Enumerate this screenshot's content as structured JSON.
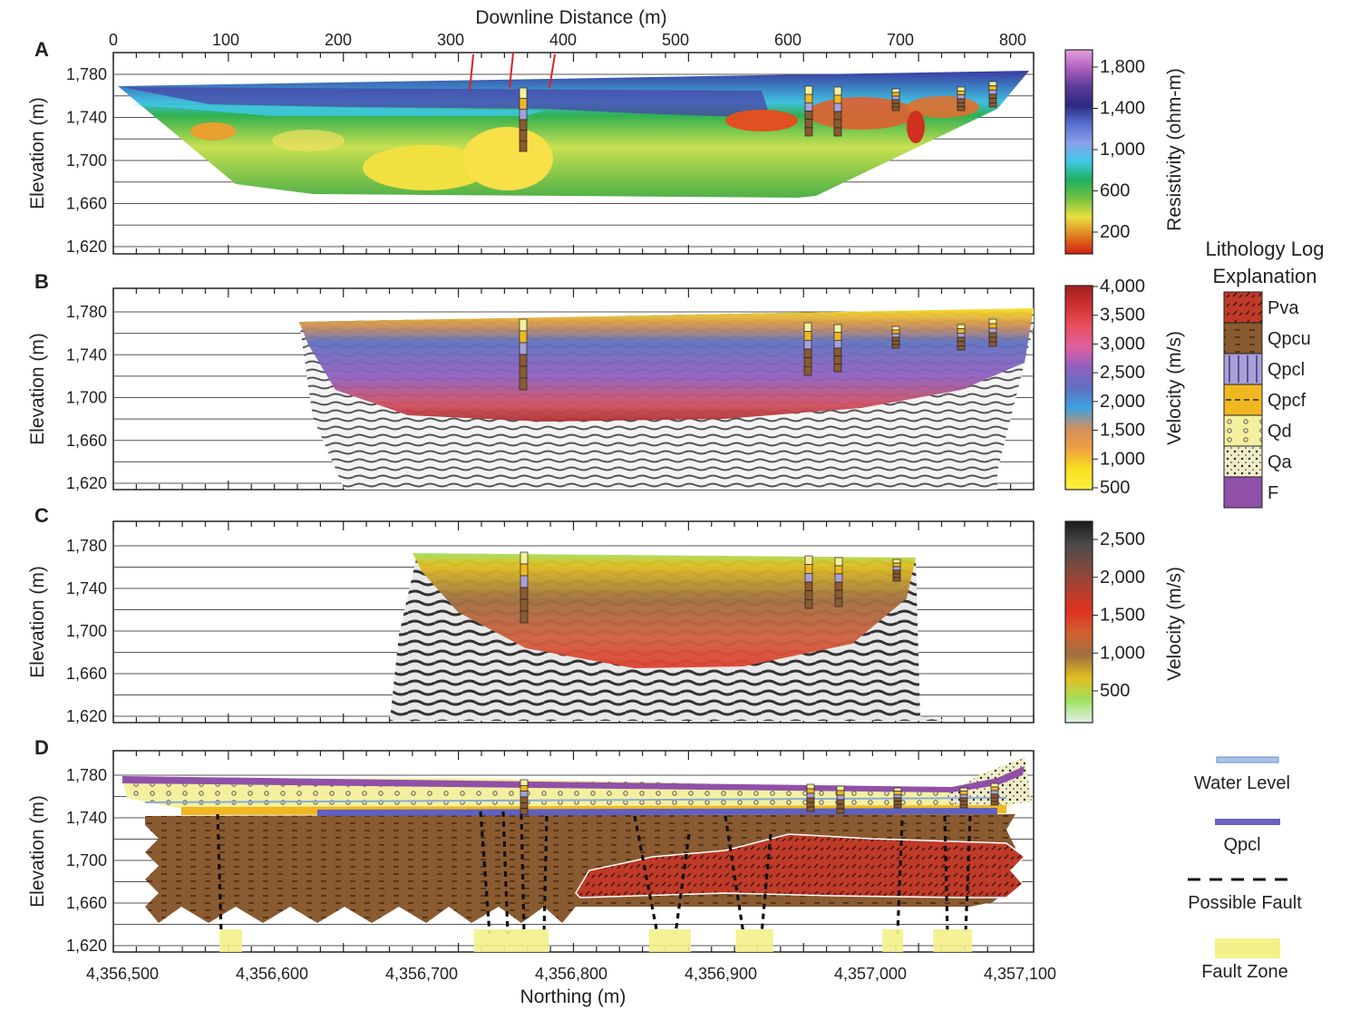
{
  "figure": {
    "top_axis_title": "Downline Distance (m)",
    "top_ticks": [
      "0",
      "100",
      "200",
      "300",
      "400",
      "500",
      "600",
      "700",
      "800"
    ],
    "bottom_axis_title": "Northing (m)",
    "bottom_ticks": [
      "4,356,500",
      "4,356,600",
      "4,356,700",
      "4,356,800",
      "4,356,900",
      "4,357,000",
      "4,357,100"
    ],
    "y_title": "Elevation (m)",
    "y_ticks": [
      "1,780",
      "1,740",
      "1,700",
      "1,660",
      "1,620"
    ]
  },
  "panels": [
    {
      "letter": "A"
    },
    {
      "letter": "B"
    },
    {
      "letter": "C"
    },
    {
      "letter": "D"
    }
  ],
  "colorbars": [
    {
      "title": "Resistivity (ohm-m)",
      "labels": [
        "1,800",
        "1,400",
        "1,000",
        "600",
        "200"
      ],
      "colors": [
        "#e4a0e0",
        "#b05ec0",
        "#5a3a98",
        "#2a2a80",
        "#5a6ed0",
        "#8aa0e8",
        "#40c8e8",
        "#20b060",
        "#70c040",
        "#e8e040",
        "#e08020",
        "#d02010"
      ]
    },
    {
      "title": "Velocity (m/s)",
      "labels": [
        "4,000",
        "3,500",
        "3,000",
        "2,500",
        "2,000",
        "1,500",
        "1,000",
        "500"
      ],
      "colors": [
        "#a02020",
        "#d03030",
        "#e85060",
        "#e060a0",
        "#9060c0",
        "#6070c0",
        "#40a0e0",
        "#d09060",
        "#f0a040",
        "#f8e020",
        "#fff040"
      ]
    },
    {
      "title": "Velocity (m/s)",
      "labels": [
        "2,500",
        "2,000",
        "1,500",
        "1,000",
        "500"
      ],
      "colors": [
        "#1a1a1a",
        "#4a4a4a",
        "#7a4a40",
        "#b04030",
        "#e03020",
        "#d06030",
        "#a07040",
        "#e0c020",
        "#a0e060",
        "#e0f0e8"
      ]
    }
  ],
  "lithology_legend": {
    "title_line1": "Lithology Log",
    "title_line2": "Explanation",
    "items": [
      {
        "label": "Pva",
        "color": "#c03a28"
      },
      {
        "label": "Qpcu",
        "color": "#8a5a30"
      },
      {
        "label": "Qpcl",
        "color": "#a8a0d8"
      },
      {
        "label": "Qpcf",
        "color": "#f0b820"
      },
      {
        "label": "Qd",
        "color": "#f4f0a0"
      },
      {
        "label": "Qa",
        "color": "#f0ecc8"
      },
      {
        "label": "F",
        "color": "#9050a8"
      }
    ]
  },
  "panel_d_legend": {
    "water_level": "Water Level",
    "qpcl": "Qpcl",
    "possible_fault": "Possible Fault",
    "fault_zone": "Fault Zone"
  },
  "chart_data": [
    {
      "type": "heatmap",
      "panel": "A",
      "x_axis": "Downline Distance (m)",
      "xlim": [
        0,
        820
      ],
      "ylim": [
        1620,
        1800
      ],
      "ylabel": "Elevation (m)",
      "colorbar_label": "Resistivity (ohm-m)",
      "colorbar_ticks": [
        200,
        600,
        1000,
        1400,
        1800
      ]
    },
    {
      "type": "heatmap",
      "panel": "B",
      "xlim": [
        0,
        820
      ],
      "ylim": [
        1620,
        1800
      ],
      "ylabel": "Elevation (m)",
      "colorbar_label": "Velocity (m/s)",
      "colorbar_ticks": [
        500,
        1000,
        1500,
        2000,
        2500,
        3000,
        3500,
        4000
      ]
    },
    {
      "type": "heatmap",
      "panel": "C",
      "xlim": [
        0,
        820
      ],
      "ylim": [
        1620,
        1800
      ],
      "ylabel": "Elevation (m)",
      "colorbar_label": "Velocity (m/s)",
      "colorbar_ticks": [
        500,
        1000,
        1500,
        2000,
        2500
      ]
    },
    {
      "type": "area",
      "panel": "D",
      "x_axis": "Northing (m)",
      "xlim": [
        4356500,
        4357100
      ],
      "ylim": [
        1620,
        1800
      ],
      "ylabel": "Elevation (m)",
      "fault_zones_northing": [
        [
          4356565,
          4356580
        ],
        [
          4356735,
          4356785
        ],
        [
          4356852,
          4356880
        ],
        [
          4356910,
          4356935
        ],
        [
          4357008,
          4357022
        ],
        [
          4357042,
          4357068
        ]
      ]
    }
  ]
}
